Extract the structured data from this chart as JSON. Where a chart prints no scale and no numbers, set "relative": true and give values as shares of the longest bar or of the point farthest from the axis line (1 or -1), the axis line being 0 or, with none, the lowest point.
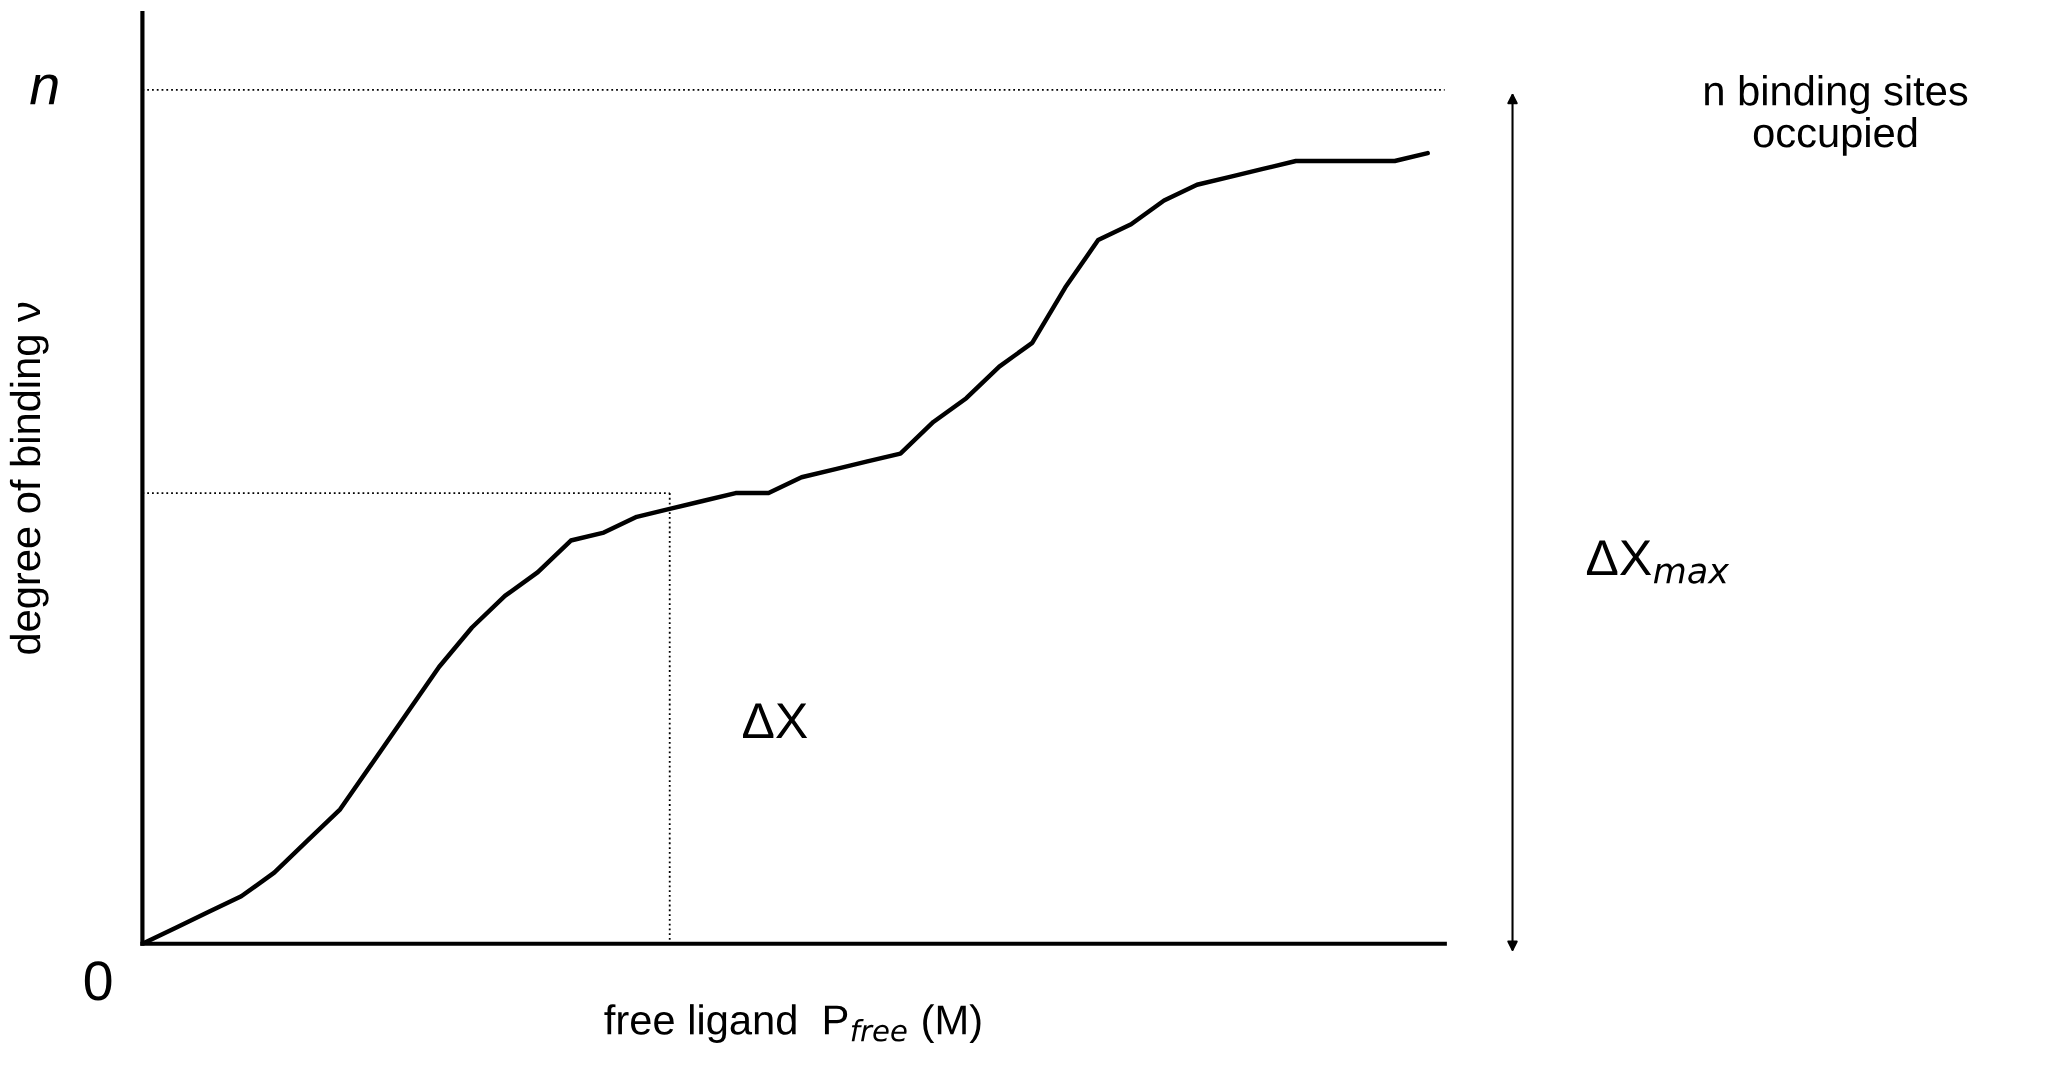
{
  "chart_data": {
    "type": "line",
    "relative": true,
    "xlabel": "free ligand  P$_{free}$ (M)",
    "ylabel": "degree of binding ν",
    "categories": [
      null,
      null,
      null,
      null,
      null,
      null,
      null,
      null,
      null,
      null,
      null,
      null,
      null,
      null,
      null,
      null,
      null,
      null,
      null,
      null,
      null,
      null,
      null,
      null,
      null,
      null,
      null,
      null,
      null,
      null,
      null,
      null,
      null,
      null,
      null,
      null,
      null,
      null,
      null,
      null
    ],
    "series": [
      {
        "color": "#000000",
        "values": [
          0,
          0.02,
          0.04,
          0.06,
          0.09,
          0.13,
          0.17,
          0.23,
          0.29,
          0.35,
          0.4,
          0.44,
          0.47,
          0.51,
          0.52,
          0.54,
          0.55,
          0.56,
          0.57,
          0.57,
          0.59,
          0.6,
          0.61,
          0.62,
          0.66,
          0.69,
          0.73,
          0.76,
          0.83,
          0.89,
          0.91,
          0.94,
          0.96,
          0.97,
          0.98,
          0.99,
          0.99,
          0.99,
          0.99,
          1
        ]
      },
      {
        "type": "line",
        "color": "#000000",
        "line_style": "dotted",
        "values": [
          0.57,
          0.57,
          0.57,
          0.57,
          0.57,
          0.57,
          0.57,
          0.57,
          0.57,
          0.57,
          0.57,
          0.57,
          0.57,
          0.57,
          0.57,
          0.57,
          0.57,
          null,
          null,
          null,
          null,
          null,
          null,
          null,
          null,
          null,
          null,
          null,
          null,
          null,
          null,
          null,
          null,
          null,
          null,
          null,
          null,
          null,
          null,
          null
        ]
      }
    ],
    "ref_lines": [
      {
        "axis": "y",
        "value": 1.08,
        "label": "n",
        "color": "#000000",
        "line_style": "dotted"
      }
    ],
    "annotations": [
      "0",
      "ΔX",
      "ΔX$_{max}$",
      "n binding sites\noccupied"
    ],
    "grid": false,
    "legend": false,
    "marker": "none",
    "line_style": "solid"
  }
}
